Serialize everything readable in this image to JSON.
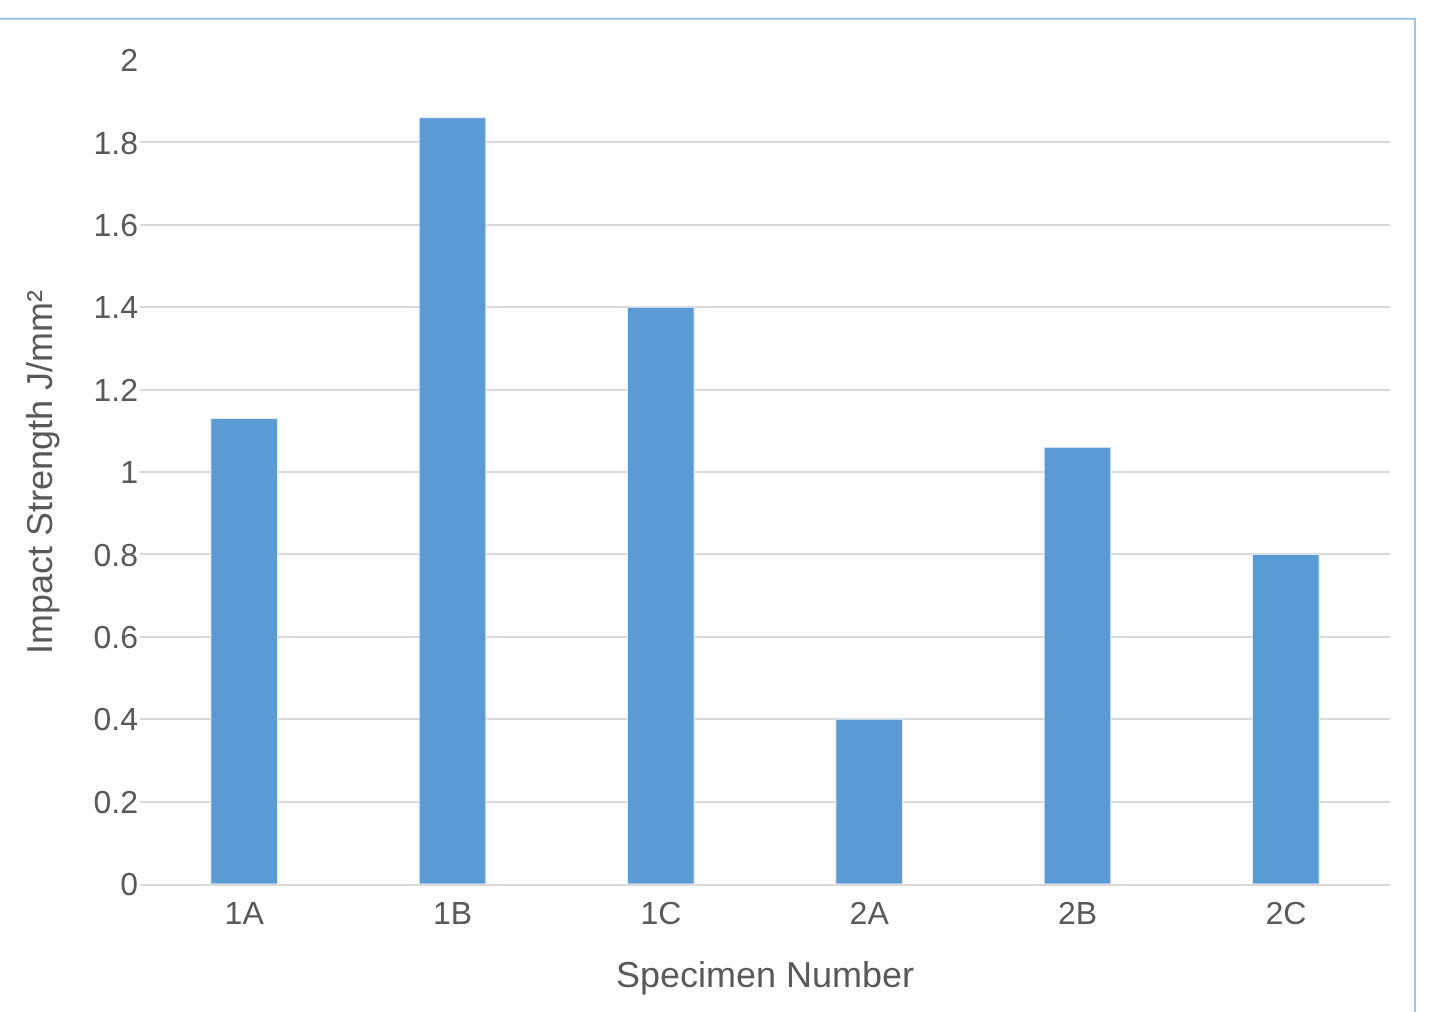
{
  "chart_data": {
    "type": "bar",
    "xlabel": "Specimen Number",
    "ylabel": "Impact Strength J/mm²",
    "categories": [
      "1A",
      "1B",
      "1C",
      "2A",
      "2B",
      "2C"
    ],
    "values": [
      1.13,
      1.86,
      1.4,
      0.4,
      1.06,
      0.8
    ],
    "color": "#5b9bd5",
    "ylim": [
      0,
      2
    ],
    "yticks": [
      0,
      0.2,
      0.4,
      0.6,
      0.8,
      1,
      1.2,
      1.4,
      1.6,
      1.8,
      2
    ],
    "grid": "y",
    "legend": false
  }
}
